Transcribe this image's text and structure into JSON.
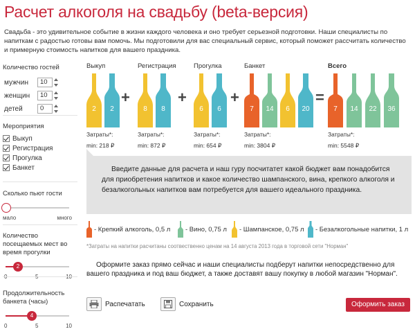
{
  "title": "Расчет алкоголя на свадьбу (beta-версия)",
  "intro": "Свадьба - это удивительное событие в жизни каждого человека и оно требует серьезной подготовки. Наши специалисты по напиткам с радостью готовы вам помочь. Мы подготовили для вас специальный сервис, который поможет рассчитать количество и примерную стоимость напитков для вашего праздника.",
  "colors": {
    "accent": "#c8283c",
    "strong": "#e8632a",
    "wine": "#7fc49a",
    "champagne": "#f2c230",
    "soft": "#4fb7c9"
  },
  "guests": {
    "header": "Количество гостей",
    "men_label": "мужчин",
    "men_value": "10",
    "women_label": "женщин",
    "women_value": "10",
    "kids_label": "детей",
    "kids_value": "0"
  },
  "events": {
    "header": "Мероприятия",
    "items": [
      "Выкуп",
      "Регистрация",
      "Прогулка",
      "Банкет"
    ]
  },
  "drinking": {
    "header": "Сколько пьют гости",
    "min_label": "мало",
    "max_label": "много",
    "level": 0
  },
  "walk_places": {
    "header": "Количество посещаемых мест во время прогулки",
    "value": "2",
    "scale": [
      "0",
      "5",
      "10"
    ]
  },
  "banquet": {
    "header": "Продолжительность банкета (часы)",
    "value": "4",
    "scale": [
      "0",
      "5",
      "10"
    ]
  },
  "stages": [
    {
      "label": "Выкуп",
      "counts": [
        "2",
        "2"
      ],
      "cost_label": "Затраты*:",
      "cost": "min: 218 ₽"
    },
    {
      "label": "Регистрация",
      "counts": [
        "8",
        "8"
      ],
      "cost_label": "Затраты*:",
      "cost": "min: 872 ₽"
    },
    {
      "label": "Прогулка",
      "counts": [
        "6",
        "6"
      ],
      "cost_label": "Затраты*:",
      "cost": "min: 654 ₽"
    },
    {
      "label": "Банкет",
      "counts": [
        "7",
        "14",
        "6",
        "20"
      ],
      "cost_label": "Затраты*:",
      "cost": "min: 3804 ₽"
    },
    {
      "label": "Всего",
      "counts": [
        "7",
        "14",
        "22",
        "36"
      ],
      "cost_label": "Затраты*:",
      "cost": "min: 5548 ₽"
    }
  ],
  "operators": [
    "+",
    "+",
    "+",
    "="
  ],
  "tip": "Введите данные для расчета и наш гуру посчитатет какой бюджет вам понадобится для приобретения напитков и какое количество шампанского, вина, крепкого алкоголя и безалкогольных напитков вам потребуется для вашего идеального праздника.",
  "legend": [
    "- Крепкий алкоголь, 0,5 л",
    "- Вино, 0,75 л",
    "- Шампанское, 0,75 л",
    "- Безалкогольные напитки, 1 л"
  ],
  "footnote": "*Затраты на напитки расчитаны соотвественно ценам на 14 августа 2013 года в торговой сети \"Норман\"",
  "order_text": "Оформите заказ прямо сейчас и наши специалисты подберут напитки непосредственно для вашего праздника и под ваш бюджет, а также доставят вашу покупку в любой магазин \"Норман\".",
  "actions": {
    "print": "Распечатать",
    "save": "Сохранить",
    "order": "Оформить заказ"
  }
}
